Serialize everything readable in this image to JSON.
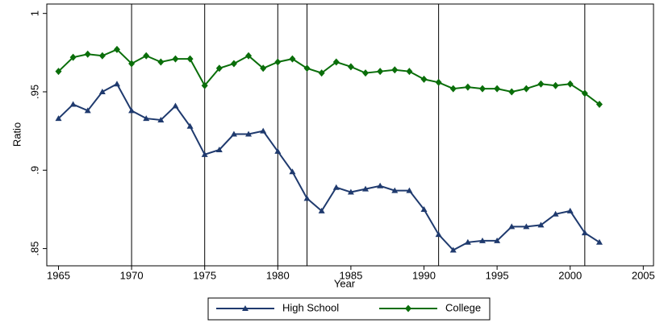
{
  "chart_data": {
    "type": "line",
    "x_label": "Year",
    "y_label": "Ratio",
    "x": [
      1965,
      1966,
      1967,
      1968,
      1969,
      1970,
      1971,
      1972,
      1973,
      1974,
      1975,
      1976,
      1977,
      1978,
      1979,
      1980,
      1981,
      1982,
      1983,
      1984,
      1985,
      1986,
      1987,
      1988,
      1989,
      1990,
      1991,
      1992,
      1993,
      1994,
      1995,
      1996,
      1997,
      1998,
      1999,
      2000,
      2001,
      2002
    ],
    "series": [
      {
        "name": "High School",
        "color": "#1f3a6e",
        "marker": "triangle",
        "values": [
          0.933,
          0.942,
          0.938,
          0.95,
          0.955,
          0.938,
          0.933,
          0.932,
          0.941,
          0.928,
          0.91,
          0.913,
          0.923,
          0.923,
          0.925,
          0.912,
          0.899,
          0.882,
          0.874,
          0.889,
          0.886,
          0.888,
          0.89,
          0.887,
          0.887,
          0.875,
          0.859,
          0.849,
          0.854,
          0.855,
          0.855,
          0.864,
          0.864,
          0.865,
          0.872,
          0.874,
          0.86,
          0.854
        ]
      },
      {
        "name": "College",
        "color": "#0a6e0a",
        "marker": "diamond",
        "values": [
          0.963,
          0.972,
          0.974,
          0.973,
          0.977,
          0.968,
          0.973,
          0.969,
          0.971,
          0.971,
          0.954,
          0.965,
          0.968,
          0.973,
          0.965,
          0.969,
          0.971,
          0.965,
          0.962,
          0.969,
          0.966,
          0.962,
          0.963,
          0.964,
          0.963,
          0.958,
          0.956,
          0.952,
          0.953,
          0.952,
          0.952,
          0.95,
          0.952,
          0.955,
          0.954,
          0.955,
          0.949,
          0.942
        ]
      }
    ],
    "vlines": [
      1970,
      1975,
      1980,
      1982,
      1991,
      2001
    ],
    "xlim": [
      1964.2,
      2005.7
    ],
    "xticks": [
      1965,
      1970,
      1975,
      1980,
      1985,
      1990,
      1995,
      2000,
      2005
    ],
    "ylim": [
      0.839,
      1.006
    ],
    "yticks": [
      {
        "value": 0.85,
        "label": ".85"
      },
      {
        "value": 0.9,
        "label": ".9"
      },
      {
        "value": 0.95,
        "label": ".95"
      },
      1
    ],
    "legend": "bottom"
  }
}
